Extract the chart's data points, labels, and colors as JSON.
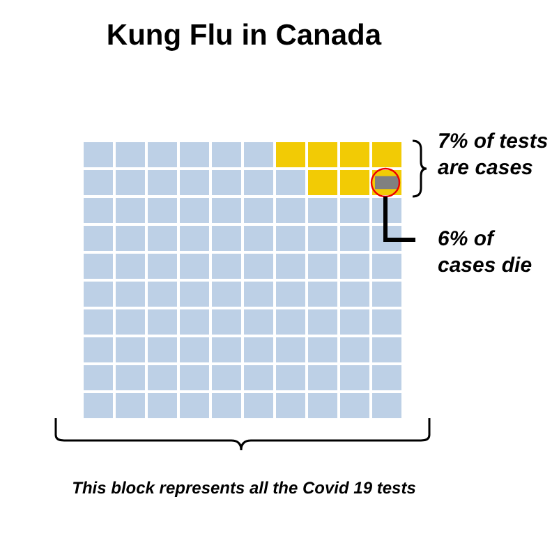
{
  "chart_data": {
    "type": "other",
    "title": "Kung Flu in Canada",
    "values": [
      7,
      6
    ],
    "value_labels": [
      "7% of tests are cases",
      "6% of cases die"
    ],
    "colors": [
      "#f2cb05",
      "#808080"
    ],
    "color": "#bdd0e6",
    "annotations": [
      "This block represents all the Covid 19 tests"
    ]
  }
}
